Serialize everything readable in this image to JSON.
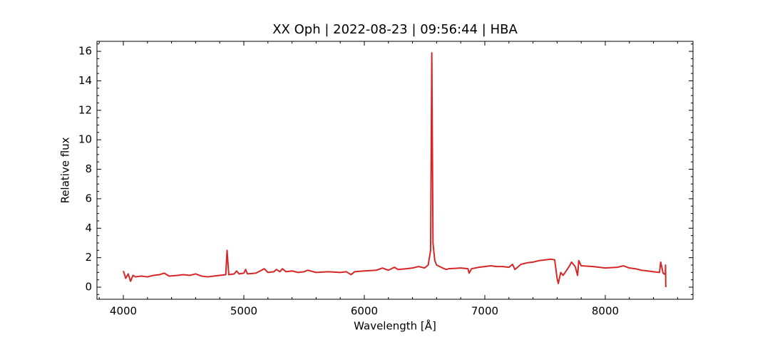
{
  "chart_data": {
    "type": "line",
    "title": "XX Oph | 2022-08-23 | 09:56:44 | HBA",
    "x_label": "Wavelength [Å]",
    "y_label": "Relative flux",
    "xlim": [
      3781,
      8728
    ],
    "ylim": [
      -0.82,
      16.68
    ],
    "xticks": [
      4000,
      5000,
      6000,
      7000,
      8000
    ],
    "yticks": [
      0,
      2,
      4,
      6,
      8,
      10,
      12,
      14,
      16
    ],
    "xminorticks": [
      3800,
      4200,
      4400,
      4600,
      4800,
      5200,
      5400,
      5600,
      5800,
      6200,
      6400,
      6600,
      6800,
      7200,
      7400,
      7600,
      7800,
      8200,
      8400,
      8600
    ],
    "yminorticks": [
      -0.5,
      0.5,
      1,
      1.5,
      2.5,
      3,
      3.5,
      4.5,
      5,
      5.5,
      6.5,
      7,
      7.5,
      8.5,
      9,
      9.5,
      10.5,
      11,
      11.5,
      12.5,
      13,
      13.5,
      14.5,
      15,
      15.5,
      16.5
    ],
    "x": [
      4000,
      4020,
      4040,
      4060,
      4080,
      4100,
      4150,
      4200,
      4250,
      4300,
      4340,
      4380,
      4450,
      4500,
      4550,
      4600,
      4650,
      4700,
      4750,
      4800,
      4850,
      4861,
      4875,
      4920,
      4940,
      4960,
      5000,
      5015,
      5030,
      5100,
      5170,
      5200,
      5250,
      5270,
      5300,
      5320,
      5350,
      5400,
      5450,
      5500,
      5530,
      5600,
      5700,
      5800,
      5850,
      5890,
      5920,
      6000,
      6100,
      6150,
      6200,
      6250,
      6280,
      6350,
      6400,
      6450,
      6500,
      6530,
      6550,
      6560,
      6570,
      6585,
      6600,
      6650,
      6680,
      6700,
      6800,
      6860,
      6870,
      6890,
      6950,
      7000,
      7050,
      7100,
      7150,
      7200,
      7230,
      7250,
      7300,
      7350,
      7400,
      7450,
      7500,
      7550,
      7580,
      7600,
      7610,
      7630,
      7650,
      7700,
      7720,
      7750,
      7770,
      7780,
      7800,
      7900,
      8000,
      8100,
      8150,
      8200,
      8250,
      8300,
      8350,
      8400,
      8450,
      8460,
      8480,
      8498,
      8500,
      8502
    ],
    "series": [
      {
        "color": "#d62728",
        "values": [
          1.1,
          0.6,
          0.9,
          0.4,
          0.8,
          0.7,
          0.75,
          0.7,
          0.8,
          0.85,
          0.95,
          0.75,
          0.8,
          0.85,
          0.8,
          0.9,
          0.75,
          0.7,
          0.75,
          0.8,
          0.85,
          2.5,
          0.85,
          0.9,
          1.1,
          0.9,
          0.95,
          1.2,
          0.9,
          0.95,
          1.25,
          1.0,
          1.05,
          1.2,
          1.05,
          1.25,
          1.05,
          1.1,
          1.0,
          1.05,
          1.15,
          1.0,
          1.05,
          1.0,
          1.05,
          0.85,
          1.05,
          1.1,
          1.15,
          1.3,
          1.15,
          1.35,
          1.2,
          1.25,
          1.3,
          1.4,
          1.3,
          1.5,
          2.5,
          15.9,
          3.0,
          1.8,
          1.5,
          1.3,
          1.2,
          1.25,
          1.3,
          1.25,
          0.95,
          1.25,
          1.35,
          1.4,
          1.45,
          1.4,
          1.4,
          1.35,
          1.55,
          1.2,
          1.55,
          1.65,
          1.7,
          1.8,
          1.85,
          1.9,
          1.85,
          0.6,
          0.25,
          1.0,
          0.8,
          1.4,
          1.7,
          1.4,
          0.8,
          1.8,
          1.45,
          1.4,
          1.3,
          1.35,
          1.45,
          1.3,
          1.25,
          1.15,
          1.1,
          1.05,
          1.0,
          1.7,
          0.95,
          0.85,
          1.5,
          0.0
        ]
      }
    ]
  }
}
